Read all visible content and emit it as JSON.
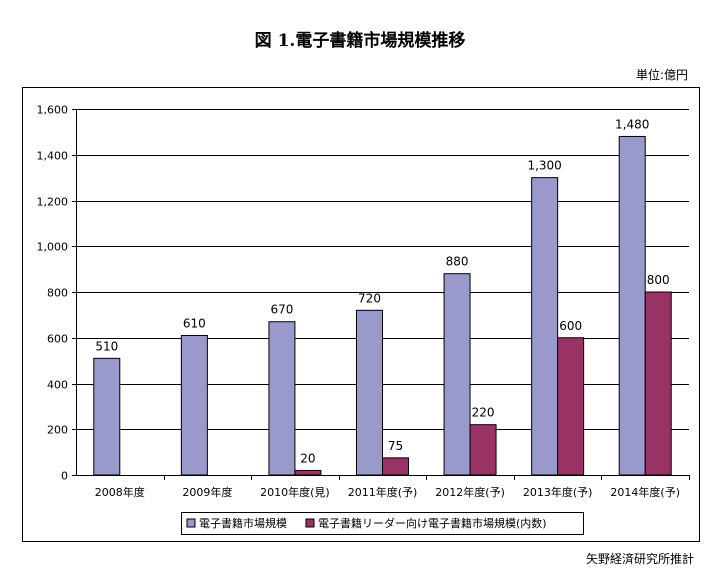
{
  "title": "図 1.電子書籍市場規模推移",
  "unit": "単位:億円",
  "source": "矢野経済研究所推計",
  "colors": {
    "series1": "#9999cc",
    "series2": "#993366",
    "gridline": "#000000"
  },
  "chart_data": {
    "type": "bar",
    "categories": [
      "2008年度",
      "2009年度",
      "2010年度(見)",
      "2011年度(予)",
      "2012年度(予)",
      "2013年度(予)",
      "2014年度(予)"
    ],
    "series": [
      {
        "name": "電子書籍市場規模",
        "values": [
          510,
          610,
          670,
          720,
          880,
          1300,
          1480
        ],
        "labels": [
          "510",
          "610",
          "670",
          "720",
          "880",
          "1,300",
          "1,480"
        ]
      },
      {
        "name": "電子書籍リーダー向け電子書籍市場規模(内数)",
        "values": [
          null,
          null,
          20,
          75,
          220,
          600,
          800
        ],
        "labels": [
          "",
          "",
          "20",
          "75",
          "220",
          "600",
          "800"
        ]
      }
    ],
    "ylim": [
      0,
      1600
    ],
    "yticks": [
      0,
      200,
      400,
      600,
      800,
      1000,
      1200,
      1400,
      1600
    ],
    "ytick_labels": [
      "0",
      "200",
      "400",
      "600",
      "800",
      "1,000",
      "1,200",
      "1,400",
      "1,600"
    ],
    "grid": true,
    "legend_position": "bottom-left"
  }
}
